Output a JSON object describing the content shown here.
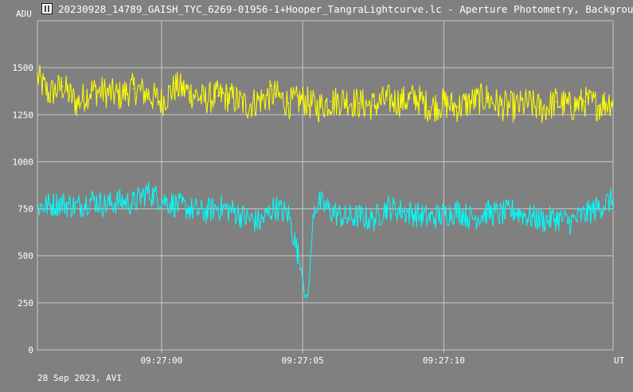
{
  "window": {
    "title": "20230928_14789_GAISH_TYC_6269-01956-1+Hooper_TangraLightcurve.lc - Aperture Photometry, Background",
    "icon": "lightcurve-app-icon"
  },
  "footer": {
    "date_text": "28 Sep 2023, AVI"
  },
  "colors": {
    "background": "#808080",
    "grid": "#c8c8c8",
    "series_target": "#ffff00",
    "series_comparison": "#00ffff"
  },
  "chart_data": {
    "type": "line",
    "ylabel": "ADU",
    "xlabel": "UT",
    "ylim": [
      0,
      1750
    ],
    "yticks": [
      0,
      250,
      500,
      750,
      1000,
      1250,
      1500
    ],
    "ytick_labels": [
      "0",
      "250",
      "500",
      "750",
      "1000",
      "1250",
      "1500"
    ],
    "x_unit": "seconds after 09:26:55",
    "xlim": [
      0.6,
      21.0
    ],
    "xticks": [
      5,
      10,
      15
    ],
    "xtick_labels": [
      "09:27:00",
      "09:27:05",
      "09:27:10"
    ],
    "grid": true,
    "series": [
      {
        "color": "#ffff00",
        "points": [
          [
            0.6,
            1450
          ],
          [
            1.0,
            1360
          ],
          [
            1.5,
            1400
          ],
          [
            2.0,
            1310
          ],
          [
            2.5,
            1380
          ],
          [
            3.0,
            1370
          ],
          [
            3.5,
            1350
          ],
          [
            4.0,
            1390
          ],
          [
            4.5,
            1360
          ],
          [
            5.0,
            1320
          ],
          [
            5.5,
            1400
          ],
          [
            6.0,
            1370
          ],
          [
            6.5,
            1330
          ],
          [
            7.0,
            1350
          ],
          [
            7.5,
            1340
          ],
          [
            8.0,
            1300
          ],
          [
            8.5,
            1330
          ],
          [
            9.0,
            1360
          ],
          [
            9.5,
            1310
          ],
          [
            10.0,
            1330
          ],
          [
            10.5,
            1290
          ],
          [
            11.0,
            1320
          ],
          [
            11.5,
            1330
          ],
          [
            12.0,
            1310
          ],
          [
            12.5,
            1300
          ],
          [
            13.0,
            1330
          ],
          [
            13.5,
            1320
          ],
          [
            14.0,
            1340
          ],
          [
            14.5,
            1290
          ],
          [
            15.0,
            1310
          ],
          [
            15.5,
            1290
          ],
          [
            16.0,
            1320
          ],
          [
            16.5,
            1340
          ],
          [
            17.0,
            1300
          ],
          [
            17.5,
            1290
          ],
          [
            18.0,
            1310
          ],
          [
            18.5,
            1280
          ],
          [
            19.0,
            1320
          ],
          [
            19.5,
            1290
          ],
          [
            20.0,
            1320
          ],
          [
            20.5,
            1300
          ],
          [
            21.0,
            1330
          ]
        ]
      },
      {
        "color": "#00ffff",
        "points": [
          [
            0.6,
            760
          ],
          [
            1.0,
            770
          ],
          [
            1.5,
            780
          ],
          [
            2.0,
            760
          ],
          [
            2.5,
            800
          ],
          [
            3.0,
            770
          ],
          [
            3.5,
            790
          ],
          [
            4.0,
            780
          ],
          [
            4.5,
            840
          ],
          [
            5.0,
            800
          ],
          [
            5.5,
            770
          ],
          [
            6.0,
            750
          ],
          [
            6.5,
            730
          ],
          [
            7.0,
            760
          ],
          [
            7.5,
            740
          ],
          [
            8.0,
            700
          ],
          [
            8.5,
            680
          ],
          [
            9.0,
            760
          ],
          [
            9.5,
            720
          ],
          [
            10.0,
            400
          ],
          [
            10.1,
            260
          ],
          [
            10.2,
            300
          ],
          [
            10.4,
            760
          ],
          [
            10.6,
            780
          ],
          [
            11.0,
            740
          ],
          [
            11.5,
            700
          ],
          [
            12.0,
            710
          ],
          [
            12.5,
            690
          ],
          [
            13.0,
            760
          ],
          [
            13.5,
            740
          ],
          [
            14.0,
            720
          ],
          [
            14.5,
            700
          ],
          [
            15.0,
            720
          ],
          [
            15.5,
            740
          ],
          [
            16.0,
            700
          ],
          [
            16.5,
            730
          ],
          [
            17.0,
            720
          ],
          [
            17.5,
            740
          ],
          [
            18.0,
            710
          ],
          [
            18.5,
            690
          ],
          [
            19.0,
            700
          ],
          [
            19.5,
            680
          ],
          [
            20.0,
            720
          ],
          [
            20.5,
            760
          ],
          [
            21.0,
            800
          ]
        ]
      }
    ]
  }
}
